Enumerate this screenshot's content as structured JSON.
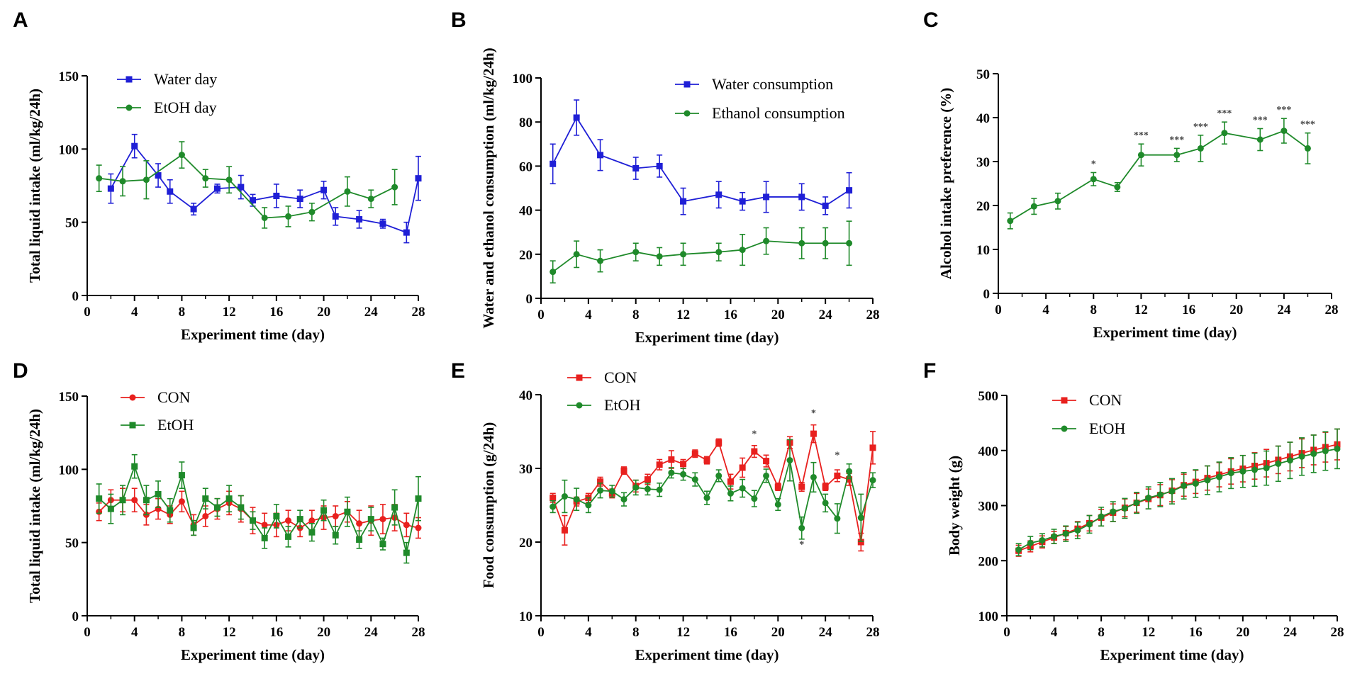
{
  "colors": {
    "blue": "#1f1fd6",
    "green": "#1f8a2a",
    "red": "#e8201e",
    "axis": "#000000",
    "star": "#444444"
  },
  "chart_data": [
    {
      "id": "A",
      "panel_label": "A",
      "type": "line",
      "xlabel": "Experiment time (day)",
      "ylabel": "Total liquid intake (ml/kg/24h)",
      "xlim": [
        0,
        28
      ],
      "ylim": [
        0,
        150
      ],
      "xticks": [
        "0",
        "4",
        "8",
        "12",
        "16",
        "20",
        "24",
        "28"
      ],
      "yticks": [
        "0",
        "50",
        "100",
        "150"
      ],
      "series": [
        {
          "name": "Water day",
          "color": "blue",
          "marker": "square",
          "x": [
            2,
            4,
            6,
            7,
            9,
            11,
            13,
            14,
            16,
            18,
            20,
            21,
            23,
            25,
            27,
            28
          ],
          "y": [
            73,
            102,
            82,
            71,
            59,
            73,
            74,
            65,
            68,
            66,
            72,
            54,
            52,
            49,
            43,
            80
          ],
          "err": [
            10,
            8,
            8,
            8,
            4,
            3,
            8,
            4,
            8,
            6,
            6,
            6,
            6,
            3,
            7,
            15
          ]
        },
        {
          "name": "EtOH day",
          "color": "green",
          "marker": "circle",
          "x": [
            1,
            3,
            5,
            8,
            10,
            12,
            15,
            17,
            19,
            22,
            24,
            26
          ],
          "y": [
            80,
            78,
            79,
            96,
            80,
            79,
            53,
            54,
            57,
            71,
            66,
            74
          ],
          "err": [
            9,
            10,
            13,
            9,
            6,
            9,
            7,
            7,
            6,
            10,
            6,
            12
          ]
        }
      ],
      "legend_position": "top-left",
      "annotations": []
    },
    {
      "id": "B",
      "panel_label": "B",
      "type": "line",
      "xlabel": "Experiment time (day)",
      "ylabel": "Water and ethanol consumption (ml/kg/24h)",
      "xlim": [
        0,
        28
      ],
      "ylim": [
        0,
        100
      ],
      "xticks": [
        "0",
        "4",
        "8",
        "12",
        "16",
        "20",
        "24",
        "28"
      ],
      "yticks": [
        "0",
        "20",
        "40",
        "60",
        "80",
        "100"
      ],
      "series": [
        {
          "name": "Water consumption",
          "color": "blue",
          "marker": "square",
          "x": [
            1,
            3,
            5,
            8,
            10,
            12,
            15,
            17,
            19,
            22,
            24,
            26
          ],
          "y": [
            61,
            82,
            65,
            59,
            60,
            44,
            47,
            44,
            46,
            46,
            42,
            49
          ],
          "err": [
            9,
            8,
            7,
            5,
            5,
            6,
            6,
            4,
            7,
            6,
            4,
            8
          ]
        },
        {
          "name": "Ethanol consumption",
          "color": "green",
          "marker": "circle",
          "x": [
            1,
            3,
            5,
            8,
            10,
            12,
            15,
            17,
            19,
            22,
            24,
            26
          ],
          "y": [
            12,
            20,
            17,
            21,
            19,
            20,
            21,
            22,
            26,
            25,
            25,
            25
          ],
          "err": [
            5,
            6,
            5,
            4,
            4,
            5,
            4,
            7,
            6,
            7,
            7,
            10
          ]
        }
      ],
      "legend_position": "top-right",
      "annotations": []
    },
    {
      "id": "C",
      "panel_label": "C",
      "type": "line",
      "xlabel": "Experiment time (day)",
      "ylabel": "Alcohol intake preference (%)",
      "xlim": [
        0,
        28
      ],
      "ylim": [
        0,
        50
      ],
      "xticks": [
        "0",
        "4",
        "8",
        "12",
        "16",
        "20",
        "24",
        "28"
      ],
      "yticks": [
        "0",
        "10",
        "20",
        "30",
        "40",
        "50"
      ],
      "series": [
        {
          "name": "EtOH",
          "color": "green",
          "marker": "circle",
          "show_legend": false,
          "x": [
            1,
            3,
            5,
            8,
            10,
            12,
            15,
            17,
            19,
            22,
            24,
            26
          ],
          "y": [
            16.5,
            19.8,
            21,
            26,
            24.2,
            31.5,
            31.5,
            33,
            36.5,
            35,
            37,
            33
          ],
          "err": [
            1.8,
            1.8,
            1.8,
            1.5,
            1,
            2.5,
            1.5,
            3,
            2.5,
            2.5,
            2.8,
            3.5
          ]
        }
      ],
      "legend_position": "none",
      "annotations": [
        {
          "x": 8,
          "text": "*"
        },
        {
          "x": 12,
          "text": "***"
        },
        {
          "x": 15,
          "text": "***"
        },
        {
          "x": 17,
          "text": "***"
        },
        {
          "x": 19,
          "text": "***"
        },
        {
          "x": 22,
          "text": "***"
        },
        {
          "x": 24,
          "text": "***"
        },
        {
          "x": 26,
          "text": "***"
        }
      ]
    },
    {
      "id": "D",
      "panel_label": "D",
      "type": "line",
      "xlabel": "Experiment time (day)",
      "ylabel": "Total liquid intake (ml/kg/24h)",
      "xlim": [
        0,
        28
      ],
      "ylim": [
        0,
        150
      ],
      "xticks": [
        "0",
        "4",
        "8",
        "12",
        "16",
        "20",
        "24",
        "28"
      ],
      "yticks": [
        "0",
        "50",
        "100",
        "150"
      ],
      "series": [
        {
          "name": "CON",
          "color": "red",
          "marker": "circle",
          "x": [
            1,
            2,
            3,
            4,
            5,
            6,
            7,
            8,
            9,
            10,
            11,
            12,
            13,
            14,
            15,
            16,
            17,
            18,
            19,
            20,
            21,
            22,
            23,
            24,
            25,
            26,
            27,
            28
          ],
          "y": [
            71,
            79,
            79,
            79,
            69,
            73,
            69,
            78,
            62,
            68,
            73,
            77,
            73,
            65,
            62,
            62,
            65,
            60,
            65,
            67,
            68,
            71,
            63,
            65,
            66,
            67,
            62,
            60
          ],
          "err": [
            6,
            7,
            8,
            8,
            7,
            7,
            6,
            7,
            7,
            7,
            7,
            8,
            9,
            9,
            8,
            8,
            7,
            6,
            7,
            8,
            7,
            7,
            9,
            10,
            10,
            9,
            8,
            7
          ]
        },
        {
          "name": "EtOH",
          "color": "green",
          "marker": "square",
          "x": [
            1,
            2,
            3,
            4,
            5,
            6,
            7,
            8,
            9,
            10,
            11,
            12,
            13,
            14,
            15,
            16,
            17,
            18,
            19,
            20,
            21,
            22,
            23,
            24,
            25,
            26,
            27,
            28
          ],
          "y": [
            80,
            73,
            79,
            102,
            79,
            83,
            72,
            96,
            60,
            80,
            74,
            80,
            74,
            65,
            53,
            68,
            54,
            66,
            57,
            72,
            55,
            71,
            52,
            66,
            49,
            74,
            43,
            80
          ],
          "err": [
            10,
            10,
            10,
            8,
            10,
            9,
            8,
            9,
            5,
            7,
            6,
            9,
            8,
            6,
            7,
            8,
            7,
            6,
            6,
            7,
            6,
            10,
            6,
            8,
            4,
            12,
            7,
            15
          ]
        }
      ],
      "legend_position": "top-left",
      "annotations": []
    },
    {
      "id": "E",
      "panel_label": "E",
      "type": "line",
      "xlabel": "Experiment time (day)",
      "ylabel": "Food consumption (g/24h)",
      "xlim": [
        0,
        28
      ],
      "ylim": [
        10,
        40
      ],
      "xticks": [
        "0",
        "4",
        "8",
        "12",
        "16",
        "20",
        "24",
        "28"
      ],
      "yticks": [
        "10",
        "20",
        "30",
        "40"
      ],
      "series": [
        {
          "name": "CON",
          "color": "red",
          "marker": "square",
          "x": [
            1,
            2,
            3,
            4,
            5,
            6,
            7,
            8,
            9,
            10,
            11,
            12,
            13,
            14,
            15,
            16,
            17,
            18,
            19,
            20,
            21,
            22,
            23,
            24,
            25,
            26,
            27,
            28
          ],
          "y": [
            26,
            21.6,
            25.5,
            26,
            28.2,
            26.6,
            29.7,
            27.6,
            28.5,
            30.5,
            31.2,
            30.6,
            32,
            31.1,
            33.5,
            28.2,
            30.1,
            32.3,
            31,
            27.5,
            33.5,
            27.5,
            34.7,
            27.5,
            29,
            28.5,
            20,
            32.8
          ],
          "err": [
            0.6,
            2,
            0.6,
            0.6,
            0.6,
            0.6,
            0.5,
            0.8,
            0.7,
            0.7,
            1.2,
            0.6,
            0.5,
            0.5,
            0.5,
            1,
            1.3,
            0.8,
            0.8,
            0.5,
            0.8,
            0.6,
            1.2,
            0.5,
            0.8,
            0.8,
            1.2,
            2.2
          ]
        },
        {
          "name": "EtOH",
          "color": "green",
          "marker": "circle",
          "x": [
            1,
            2,
            3,
            4,
            5,
            6,
            7,
            8,
            9,
            10,
            11,
            12,
            13,
            14,
            15,
            16,
            17,
            18,
            19,
            20,
            21,
            22,
            23,
            24,
            25,
            26,
            27,
            28
          ],
          "y": [
            24.8,
            26.2,
            25.8,
            25,
            27,
            26.9,
            25.8,
            27.4,
            27.2,
            27.1,
            29.4,
            29.2,
            28.5,
            26,
            29,
            26.6,
            27.3,
            25.9,
            29,
            25.1,
            31.1,
            21.9,
            28.8,
            25.3,
            23.2,
            29.6,
            23.3,
            28.4
          ],
          "err": [
            0.8,
            2.2,
            1.5,
            1,
            1,
            0.8,
            0.9,
            1,
            0.8,
            0.9,
            0.7,
            0.8,
            0.9,
            0.9,
            0.8,
            1,
            1.2,
            1.1,
            0.9,
            0.8,
            2.8,
            1.5,
            2,
            1.2,
            2,
            1,
            3.2,
            1
          ]
        }
      ],
      "legend_position": "top-left",
      "annotations": [
        {
          "x": 18,
          "y": 34.3,
          "text": "*"
        },
        {
          "x": 23,
          "y": 37.1,
          "text": "*"
        },
        {
          "x": 25,
          "y": 31.4,
          "text": "*"
        },
        {
          "x": 22,
          "y": 19.3,
          "text": "*"
        }
      ]
    },
    {
      "id": "F",
      "panel_label": "F",
      "type": "line",
      "xlabel": "Experiment time (day)",
      "ylabel": "Body weight (g)",
      "xlim": [
        0,
        28
      ],
      "ylim": [
        100,
        500
      ],
      "xticks": [
        "0",
        "4",
        "8",
        "12",
        "16",
        "20",
        "24",
        "28"
      ],
      "yticks": [
        "100",
        "200",
        "300",
        "400",
        "500"
      ],
      "series": [
        {
          "name": "CON",
          "color": "red",
          "marker": "square",
          "x": [
            1,
            2,
            3,
            4,
            5,
            6,
            7,
            8,
            9,
            10,
            11,
            12,
            13,
            14,
            15,
            16,
            17,
            18,
            19,
            20,
            21,
            22,
            23,
            24,
            25,
            26,
            27,
            28
          ],
          "y": [
            218,
            226,
            234,
            242,
            250,
            258,
            268,
            278,
            287,
            296,
            305,
            312,
            319,
            327,
            337,
            343,
            350,
            356,
            362,
            367,
            372,
            377,
            383,
            389,
            395,
            401,
            406,
            411
          ],
          "err": [
            10,
            10,
            11,
            11,
            12,
            13,
            14,
            15,
            16,
            16,
            17,
            18,
            19,
            20,
            20,
            21,
            22,
            22,
            23,
            24,
            24,
            25,
            25,
            26,
            26,
            27,
            27,
            28
          ]
        },
        {
          "name": "EtOH",
          "color": "green",
          "marker": "circle",
          "x": [
            1,
            2,
            3,
            4,
            5,
            6,
            7,
            8,
            9,
            10,
            11,
            12,
            13,
            14,
            15,
            16,
            17,
            18,
            19,
            20,
            21,
            22,
            23,
            24,
            25,
            26,
            27,
            28
          ],
          "y": [
            220,
            232,
            237,
            244,
            249,
            255,
            266,
            280,
            289,
            295,
            305,
            314,
            320,
            326,
            336,
            340,
            346,
            352,
            359,
            362,
            365,
            368,
            376,
            382,
            389,
            394,
            399,
            403
          ],
          "err": [
            11,
            12,
            12,
            13,
            14,
            15,
            16,
            17,
            18,
            18,
            19,
            20,
            22,
            23,
            24,
            25,
            26,
            27,
            28,
            29,
            30,
            31,
            32,
            33,
            34,
            34,
            35,
            36
          ]
        }
      ],
      "legend_position": "top-left",
      "annotations": []
    }
  ]
}
